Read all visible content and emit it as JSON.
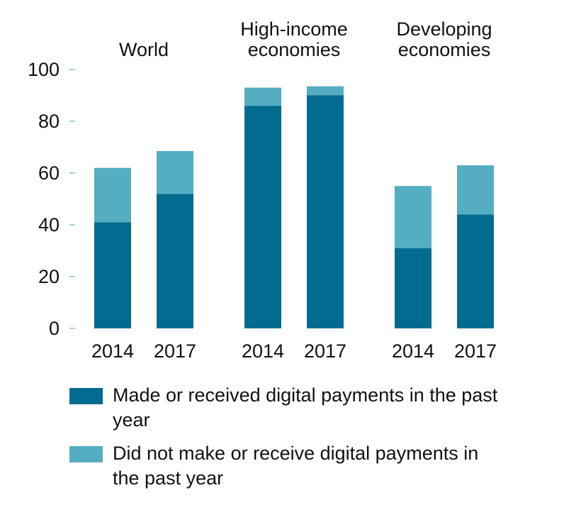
{
  "colors": {
    "made": "#016c8f",
    "not_made": "#55adc2",
    "axis": "#7fc3d3"
  },
  "chart_data": {
    "type": "bar",
    "stacked": true,
    "ylim": [
      0,
      100
    ],
    "yticks": [
      "0",
      "20",
      "40",
      "60",
      "80",
      "100"
    ],
    "groups": [
      {
        "label_lines": [
          "World"
        ],
        "categories": [
          "2014",
          "2017"
        ]
      },
      {
        "label_lines": [
          "High-income",
          "economies"
        ],
        "categories": [
          "2014",
          "2017"
        ]
      },
      {
        "label_lines": [
          "Developing",
          "economies"
        ],
        "categories": [
          "2014",
          "2017"
        ]
      }
    ],
    "series": [
      {
        "name": "Made or received digital payments in the past year",
        "values": [
          41,
          52,
          86,
          90,
          31,
          44
        ]
      },
      {
        "name": "Did not make or receive digital payments in the past year",
        "values": [
          21,
          16.5,
          7,
          3.5,
          24,
          19
        ]
      }
    ]
  },
  "legend": [
    {
      "label": "Made or received digital payments in the past year"
    },
    {
      "label": "Did not make or receive digital payments in the past year"
    }
  ]
}
